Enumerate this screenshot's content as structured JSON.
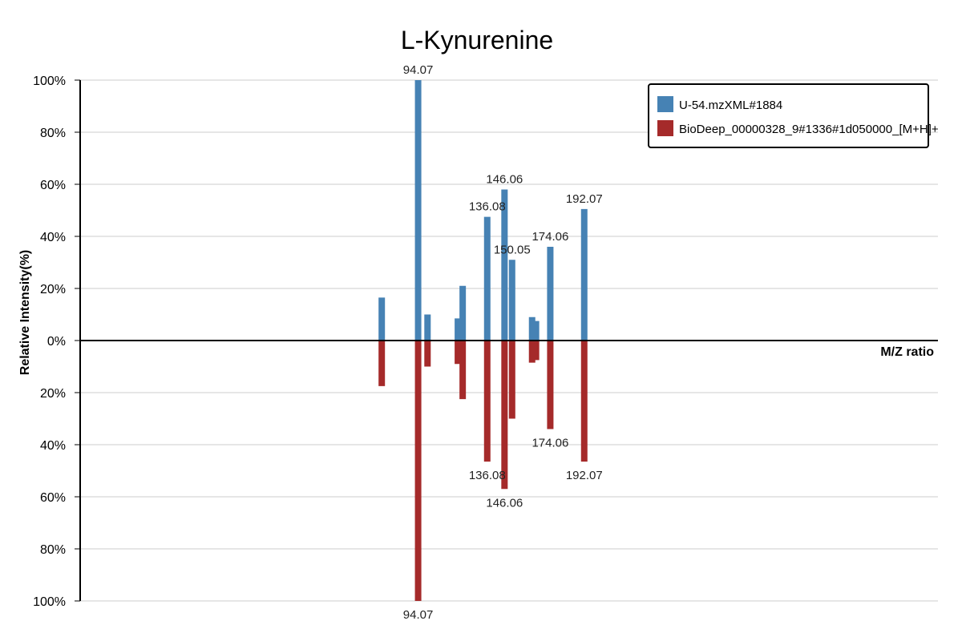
{
  "chart_data": {
    "type": "bar",
    "title": "L-Kynurenine",
    "xlabel": "M/Z ratio",
    "ylabel": "Relative Intensity(%)",
    "xlim": [
      0,
      283
    ],
    "ylim": [
      -100,
      100
    ],
    "y_ticks": [
      {
        "value": 100,
        "label": "100%"
      },
      {
        "value": 80,
        "label": "80%"
      },
      {
        "value": 60,
        "label": "60%"
      },
      {
        "value": 40,
        "label": "40%"
      },
      {
        "value": 20,
        "label": "20%"
      },
      {
        "value": 0,
        "label": "0%"
      },
      {
        "value": -20,
        "label": "20%"
      },
      {
        "value": -40,
        "label": "40%"
      },
      {
        "value": -60,
        "label": "60%"
      },
      {
        "value": -80,
        "label": "80%"
      },
      {
        "value": -100,
        "label": "100%"
      }
    ],
    "grid": true,
    "legend_position": "top-right",
    "series": [
      {
        "name": "U-54.mzXML#1884",
        "color": "#4682B4",
        "direction": "up",
        "peaks": [
          {
            "mz": 99.5,
            "intensity": 16.5
          },
          {
            "mz": 111.5,
            "intensity": 100,
            "label": "94.07"
          },
          {
            "mz": 114.6,
            "intensity": 10
          },
          {
            "mz": 124.6,
            "intensity": 8.5
          },
          {
            "mz": 126.2,
            "intensity": 21
          },
          {
            "mz": 134.3,
            "intensity": 47.5,
            "label": "136.08"
          },
          {
            "mz": 140.0,
            "intensity": 58,
            "label": "146.06"
          },
          {
            "mz": 142.5,
            "intensity": 31,
            "label": "150.05"
          },
          {
            "mz": 149.1,
            "intensity": 9
          },
          {
            "mz": 150.4,
            "intensity": 7.5
          },
          {
            "mz": 155.1,
            "intensity": 36,
            "label": "174.06"
          },
          {
            "mz": 166.3,
            "intensity": 50.5,
            "label": "192.07"
          }
        ]
      },
      {
        "name": "BioDeep_00000328_9#1336#1d050000_[M+H]+",
        "color": "#A52A2A",
        "direction": "down",
        "peaks": [
          {
            "mz": 99.5,
            "intensity": 17.5
          },
          {
            "mz": 111.5,
            "intensity": 100,
            "label": "94.07"
          },
          {
            "mz": 114.6,
            "intensity": 10
          },
          {
            "mz": 124.6,
            "intensity": 9
          },
          {
            "mz": 126.2,
            "intensity": 22.5
          },
          {
            "mz": 134.3,
            "intensity": 46.5,
            "label": "136.08"
          },
          {
            "mz": 140.0,
            "intensity": 57,
            "label": "146.06"
          },
          {
            "mz": 142.5,
            "intensity": 30
          },
          {
            "mz": 149.1,
            "intensity": 8.5
          },
          {
            "mz": 150.4,
            "intensity": 7.5
          },
          {
            "mz": 155.1,
            "intensity": 34,
            "label": "174.06"
          },
          {
            "mz": 166.3,
            "intensity": 46.5,
            "label": "192.07"
          }
        ]
      }
    ]
  }
}
